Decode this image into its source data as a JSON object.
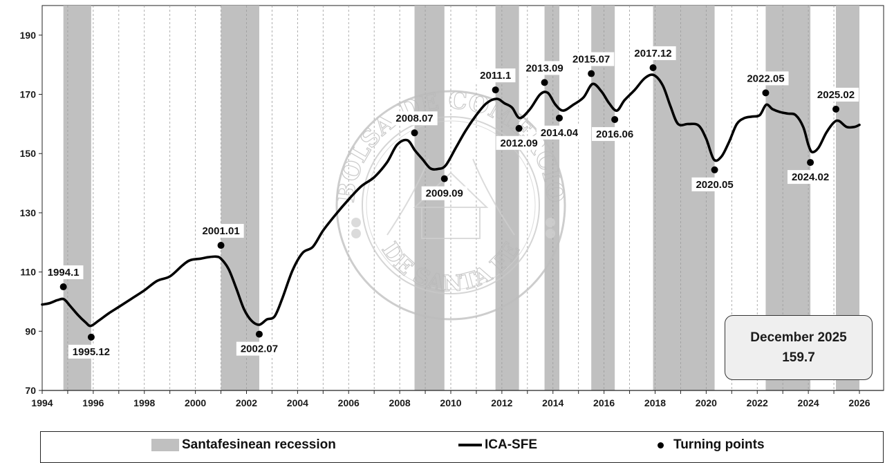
{
  "chart_data": {
    "type": "line",
    "xlim": [
      1994,
      2026
    ],
    "ylim": [
      70,
      200
    ],
    "x_ticks": [
      "1994",
      "1996",
      "1998",
      "2000",
      "2002",
      "2004",
      "2006",
      "2008",
      "2010",
      "2012",
      "2014",
      "2016",
      "2018",
      "2020",
      "2022",
      "2024",
      "2026"
    ],
    "y_ticks": [
      "70",
      "90",
      "110",
      "130",
      "150",
      "170",
      "190"
    ],
    "grid": "vertical dashed lines every year",
    "recessions": [
      {
        "start": 1994.83,
        "end": 1995.92
      },
      {
        "start": 2001.0,
        "end": 2002.5
      },
      {
        "start": 2008.58,
        "end": 2009.75
      },
      {
        "start": 2011.75,
        "end": 2012.67
      },
      {
        "start": 2013.67,
        "end": 2014.25
      },
      {
        "start": 2015.5,
        "end": 2016.42
      },
      {
        "start": 2017.92,
        "end": 2020.33
      },
      {
        "start": 2022.33,
        "end": 2024.08
      },
      {
        "start": 2025.08,
        "end": 2026.0
      }
    ],
    "series": [
      {
        "name": "ICA-SFE",
        "color": "#000000",
        "x": [
          1994.0,
          1994.3,
          1994.6,
          1994.85,
          1995.1,
          1995.4,
          1995.7,
          1995.9,
          1996.2,
          1996.6,
          1997.0,
          1997.5,
          1998.0,
          1998.5,
          1999.0,
          1999.5,
          1999.8,
          2000.2,
          2000.5,
          2000.8,
          2001.0,
          2001.3,
          2001.6,
          2001.9,
          2002.2,
          2002.5,
          2002.8,
          2003.1,
          2003.4,
          2003.8,
          2004.2,
          2004.6,
          2005.0,
          2005.5,
          2006.0,
          2006.5,
          2007.0,
          2007.5,
          2007.9,
          2008.3,
          2008.6,
          2008.9,
          2009.2,
          2009.5,
          2009.8,
          2010.2,
          2010.6,
          2011.0,
          2011.4,
          2011.8,
          2012.1,
          2012.4,
          2012.7,
          2013.1,
          2013.5,
          2013.8,
          2014.1,
          2014.4,
          2014.8,
          2015.2,
          2015.55,
          2015.9,
          2016.2,
          2016.5,
          2016.8,
          2017.2,
          2017.6,
          2017.95,
          2018.3,
          2018.6,
          2018.9,
          2019.3,
          2019.7,
          2020.0,
          2020.3,
          2020.6,
          2020.9,
          2021.2,
          2021.5,
          2021.8,
          2022.1,
          2022.35,
          2022.6,
          2022.9,
          2023.2,
          2023.5,
          2023.8,
          2024.0,
          2024.15,
          2024.4,
          2024.7,
          2025.0,
          2025.2,
          2025.5,
          2025.8,
          2026.0
        ],
        "values": [
          99,
          99.5,
          100.5,
          100.8,
          98.5,
          95.5,
          93,
          91.8,
          93.5,
          96,
          98.2,
          101,
          103.8,
          107,
          108.5,
          112.3,
          114,
          114.5,
          115,
          115.2,
          114.5,
          111,
          104.5,
          97.5,
          93.5,
          92.2,
          94,
          95,
          101,
          110.5,
          116.5,
          118.5,
          124,
          129.5,
          134.5,
          139,
          142,
          147,
          153,
          154.5,
          151,
          148,
          145,
          144.8,
          146,
          152,
          158,
          163,
          167,
          168.5,
          167,
          165.5,
          162,
          165,
          170,
          170.5,
          166.5,
          164.5,
          166.5,
          169,
          173.5,
          171,
          167,
          164.5,
          168,
          171.5,
          175.5,
          176.5,
          173,
          166,
          160,
          160,
          159.5,
          155,
          148,
          149,
          154,
          160,
          162,
          162.5,
          163,
          166.5,
          165,
          164,
          163.5,
          163,
          159,
          153,
          150.5,
          152,
          157,
          160.5,
          161,
          159,
          159,
          159.7
        ]
      }
    ],
    "turning_points": [
      {
        "label": "1994.1",
        "x": 1994.83,
        "y": 105
      },
      {
        "label": "1995.12",
        "x": 1995.92,
        "y": 88
      },
      {
        "label": "2001.01",
        "x": 2001.0,
        "y": 119
      },
      {
        "label": "2002.07",
        "x": 2002.5,
        "y": 89
      },
      {
        "label": "2008.07",
        "x": 2008.58,
        "y": 157
      },
      {
        "label": "2009.09",
        "x": 2009.75,
        "y": 141.5
      },
      {
        "label": "2011.1",
        "x": 2011.75,
        "y": 171.5
      },
      {
        "label": "2012.09",
        "x": 2012.67,
        "y": 158.5
      },
      {
        "label": "2013.09",
        "x": 2013.67,
        "y": 174
      },
      {
        "label": "2014.04",
        "x": 2014.25,
        "y": 162
      },
      {
        "label": "2015.07",
        "x": 2015.5,
        "y": 177
      },
      {
        "label": "2016.06",
        "x": 2016.42,
        "y": 161.5
      },
      {
        "label": "2017.12",
        "x": 2017.92,
        "y": 179
      },
      {
        "label": "2020.05",
        "x": 2020.33,
        "y": 144.5
      },
      {
        "label": "2022.05",
        "x": 2022.33,
        "y": 170.5
      },
      {
        "label": "2024.02",
        "x": 2024.08,
        "y": 147
      },
      {
        "label": "2025.02",
        "x": 2025.08,
        "y": 165
      }
    ]
  },
  "info_box": {
    "line1": "December 2025",
    "line2": "159.7"
  },
  "legend": {
    "recession_label": "Santafesinean recession",
    "line_label": "ICA-SFE",
    "points_label": "Turning points"
  },
  "watermark": {
    "top_text": "BOLSA DE COMERCIO",
    "bottom_text": "DE SANTA FE"
  },
  "colors": {
    "recession": "#c0c0c0",
    "line": "#000000"
  }
}
